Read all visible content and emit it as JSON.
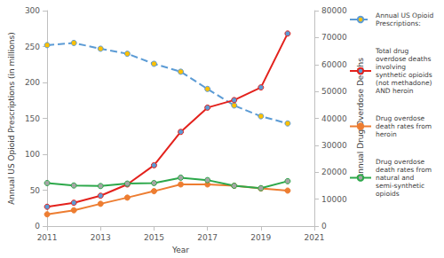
{
  "chart_data": {
    "type": "line",
    "x_label": "Year",
    "y_label": "Annual US Opioid Prescriptions (in millions)",
    "y2_label": "Annual Drug Overdose Deaths",
    "x": [
      2011,
      2012,
      2013,
      2014,
      2015,
      2016,
      2017,
      2018,
      2019,
      2020
    ],
    "xlim": [
      2011,
      2021
    ],
    "xticks": [
      2011,
      2013,
      2015,
      2017,
      2019,
      2021
    ],
    "ylim": [
      0,
      300
    ],
    "yticks": [
      0,
      50,
      100,
      150,
      200,
      250,
      300
    ],
    "y2lim": [
      0,
      80000
    ],
    "y2ticks": [
      0,
      10000,
      20000,
      30000,
      40000,
      50000,
      60000,
      70000,
      80000
    ],
    "grid": false,
    "legend": "right",
    "series": [
      {
        "name": "Annual US Opioid Prescriptions:",
        "color": "#5b9bd5",
        "marker": "circle",
        "line_style": "dashed",
        "values": [
          252,
          255,
          247,
          240,
          226,
          215,
          191,
          168,
          153,
          143
        ]
      },
      {
        "name": "Total drug overdose deaths involving synthetic opioids (not methadone) AND heroin",
        "color": "#e3211c",
        "marker": "circle",
        "line_style": "solid",
        "axis": "y2",
        "values": [
          7200,
          8700,
          11300,
          15500,
          22600,
          35000,
          44000,
          46800,
          51500,
          71500
        ]
      },
      {
        "name": "Drug overdose death rates from heroin",
        "color": "#ed7d31",
        "marker": "circle",
        "line_style": "solid",
        "axis": "y2",
        "values": [
          4400,
          5900,
          8300,
          10600,
          13000,
          15500,
          15500,
          15000,
          14000,
          13200
        ]
      },
      {
        "name": "Drug overdose death rates from natural and semi-synthetic opioids",
        "color": "#2ca84a",
        "marker": "circle",
        "line_style": "solid",
        "axis": "y2",
        "values": [
          16000,
          15100,
          14900,
          15800,
          16000,
          18000,
          17100,
          15000,
          14100,
          16700
        ]
      }
    ]
  }
}
